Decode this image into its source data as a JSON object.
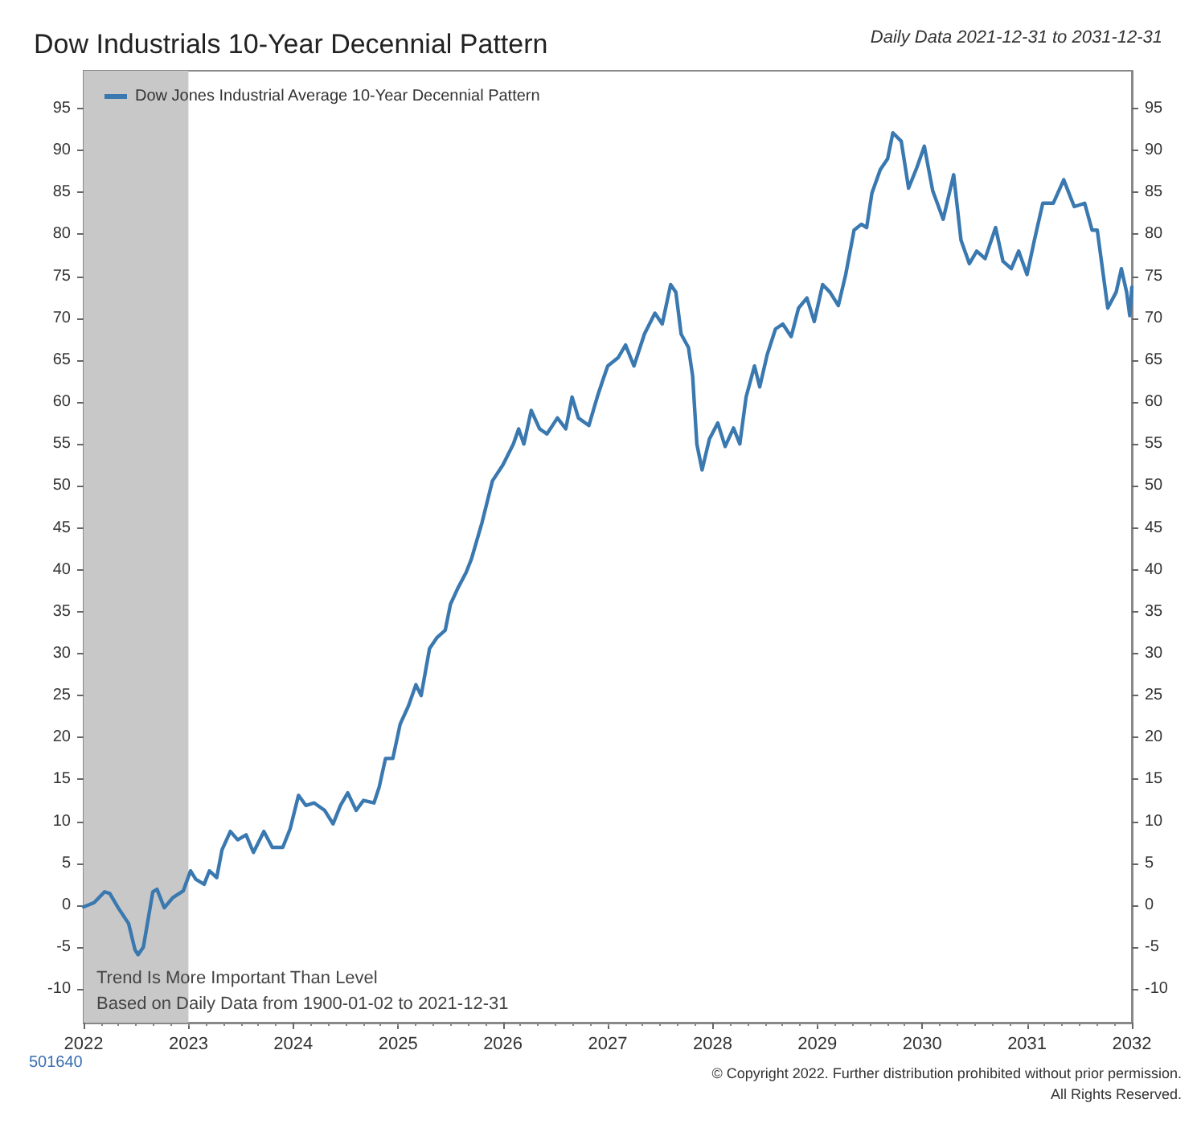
{
  "chart_data": {
    "type": "line",
    "title": "Dow Industrials 10-Year Decennial Pattern",
    "annotations": [
      "Daily Data 2021-12-31 to 2031-12-31",
      "Trend Is More Important Than Level",
      "Based on Daily Data from 1900-01-02 to 2021-12-31",
      "501640",
      "© Copyright 2022. Further distribution prohibited without prior permission.",
      "All Rights Reserved."
    ],
    "xlim": [
      2022,
      2032
    ],
    "xticks": [
      2022,
      2023,
      2024,
      2025,
      2026,
      2027,
      2028,
      2029,
      2030,
      2031,
      2032
    ],
    "ylim": [
      -14,
      99.5
    ],
    "yticks": [
      -10,
      -5,
      0,
      5,
      10,
      15,
      20,
      25,
      30,
      35,
      40,
      45,
      50,
      55,
      60,
      65,
      70,
      75,
      80,
      85,
      90,
      95
    ],
    "y2lim": [
      -14,
      99.5
    ],
    "y2ticks": [
      -10,
      -5,
      0,
      5,
      10,
      15,
      20,
      25,
      30,
      35,
      40,
      45,
      50,
      55,
      60,
      65,
      70,
      75,
      80,
      85,
      90,
      95
    ],
    "grid": false,
    "legend": "top left",
    "marker": "none",
    "line_style": "solid",
    "bands": [
      {
        "axis": "x",
        "from": 2022,
        "to": 2023,
        "color": "#c8c8c8"
      }
    ],
    "series": [
      {
        "name": "Dow Jones Industrial Average 10-Year Decennial Pattern",
        "color": "#3a78b0",
        "x": [
          2022.0,
          2022.1,
          2022.2,
          2022.25,
          2022.33,
          2022.43,
          2022.49,
          2022.52,
          2022.57,
          2022.66,
          2022.7,
          2022.77,
          2022.85,
          2022.95,
          2023.02,
          2023.07,
          2023.15,
          2023.2,
          2023.27,
          2023.32,
          2023.4,
          2023.47,
          2023.55,
          2023.62,
          2023.72,
          2023.8,
          2023.9,
          2023.97,
          2024.05,
          2024.12,
          2024.2,
          2024.3,
          2024.38,
          2024.45,
          2024.52,
          2024.6,
          2024.67,
          2024.77,
          2024.82,
          2024.88,
          2024.95,
          2025.02,
          2025.1,
          2025.17,
          2025.22,
          2025.3,
          2025.37,
          2025.45,
          2025.5,
          2025.57,
          2025.65,
          2025.7,
          2025.8,
          2025.9,
          2026.0,
          2026.1,
          2026.15,
          2026.2,
          2026.27,
          2026.35,
          2026.42,
          2026.52,
          2026.6,
          2026.66,
          2026.72,
          2026.82,
          2026.9,
          2026.95,
          2027.0,
          2027.1,
          2027.17,
          2027.25,
          2027.35,
          2027.45,
          2027.52,
          2027.6,
          2027.65,
          2027.7,
          2027.77,
          2027.81,
          2027.85,
          2027.9,
          2027.97,
          2028.05,
          2028.12,
          2028.2,
          2028.26,
          2028.32,
          2028.4,
          2028.45,
          2028.52,
          2028.6,
          2028.67,
          2028.75,
          2028.82,
          2028.9,
          2028.97,
          2029.05,
          2029.12,
          2029.2,
          2029.27,
          2029.35,
          2029.42,
          2029.47,
          2029.52,
          2029.6,
          2029.67,
          2029.72,
          2029.8,
          2029.87,
          2029.95,
          2030.02,
          2030.1,
          2030.2,
          2030.3,
          2030.37,
          2030.45,
          2030.52,
          2030.6,
          2030.7,
          2030.77,
          2030.85,
          2030.92,
          2031.0,
          2031.07,
          2031.15,
          2031.25,
          2031.35,
          2031.45,
          2031.55,
          2031.62,
          2031.67,
          2031.77,
          2031.85,
          2031.9,
          2031.95,
          2031.98,
          2032.0
        ],
        "values": [
          -0.2,
          0.3,
          1.6,
          1.4,
          -0.3,
          -2.2,
          -5.3,
          -5.9,
          -5,
          1.6,
          1.9,
          -0.3,
          0.9,
          1.7,
          4.1,
          3.1,
          2.5,
          4.1,
          3.3,
          6.6,
          8.8,
          7.8,
          8.4,
          6.3,
          8.8,
          6.9,
          6.9,
          9.1,
          13.1,
          11.9,
          12.2,
          11.3,
          9.7,
          11.9,
          13.4,
          11.3,
          12.5,
          12.2,
          14.1,
          17.5,
          17.5,
          21.6,
          23.8,
          26.3,
          25,
          30.6,
          31.9,
          32.8,
          35.9,
          37.8,
          39.7,
          41.3,
          45.6,
          50.6,
          52.5,
          55,
          56.8,
          55,
          59,
          56.8,
          56.2,
          58.1,
          56.8,
          60.6,
          58.1,
          57.2,
          60.6,
          62.5,
          64.3,
          65.3,
          66.8,
          64.3,
          68.1,
          70.6,
          69.3,
          74,
          73.1,
          68.1,
          66.5,
          63.1,
          55,
          51.9,
          55.6,
          57.5,
          54.7,
          56.9,
          55,
          60.6,
          64.3,
          61.8,
          65.6,
          68.7,
          69.3,
          67.8,
          71.2,
          72.4,
          69.6,
          74,
          73.1,
          71.5,
          75.2,
          80.5,
          81.2,
          80.8,
          84.9,
          87.7,
          89,
          92.1,
          91.1,
          85.5,
          88,
          90.5,
          85.2,
          81.8,
          87.1,
          79.3,
          76.5,
          78,
          77.1,
          80.8,
          76.8,
          75.9,
          78,
          75.2,
          79.3,
          83.7,
          83.7,
          86.5,
          83.3,
          83.7,
          80.5,
          80.5,
          71.2,
          73.1,
          75.9,
          73.1,
          70.3,
          73.7
        ]
      }
    ]
  }
}
